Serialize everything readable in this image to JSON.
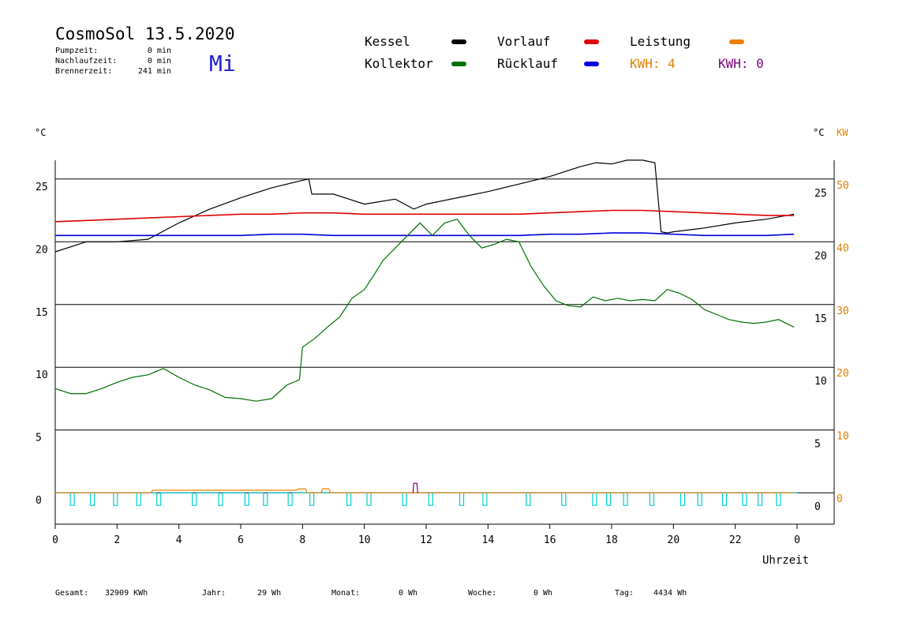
{
  "header": {
    "title": "CosmoSol 13.5.2020",
    "weekday": "Mi",
    "stats": [
      {
        "label": "Pumpzeit:",
        "value": "0 min"
      },
      {
        "label": "Nachlaufzeit:",
        "value": "0 min"
      },
      {
        "label": "Brennerzeit:",
        "value": "241 min"
      }
    ]
  },
  "legend": {
    "items": [
      {
        "label": "Kessel",
        "color": "#000000"
      },
      {
        "label": "Vorlauf",
        "color": "#e00000"
      },
      {
        "label": "Leistung",
        "color": "#f08000"
      },
      {
        "label": "Kollektor",
        "color": "#007000"
      },
      {
        "label": "Rücklauf",
        "color": "#0000e0"
      }
    ],
    "kwh_orange": {
      "text": "KWH: 4",
      "color": "#e08000"
    },
    "kwh_purple": {
      "text": "KWH: 0",
      "color": "#800080"
    }
  },
  "axes": {
    "left_unit": "°C",
    "right_unit_c": "°C",
    "right_unit_kw": "KW",
    "x_label": "Uhrzeit",
    "kw_color": "#e08000"
  },
  "footer": [
    {
      "label": "Gesamt:",
      "value": "32909 KWh"
    },
    {
      "label": "Jahr:",
      "value": "29 Wh"
    },
    {
      "label": "Monat:",
      "value": "0 Wh"
    },
    {
      "label": "Woche:",
      "value": "0 Wh"
    },
    {
      "label": "Tag:",
      "value": "4434 Wh"
    }
  ],
  "chart_data": {
    "type": "line",
    "xlabel": "Uhrzeit",
    "xlim": [
      0,
      24
    ],
    "x_ticks": [
      "0",
      "2",
      "4",
      "6",
      "8",
      "10",
      "12",
      "14",
      "16",
      "18",
      "20",
      "22",
      "0"
    ],
    "y_left": {
      "label": "°C",
      "ylim": [
        -2,
        27
      ],
      "ticks": [
        0,
        5,
        10,
        15,
        20,
        25
      ]
    },
    "y_right_c": {
      "label": "°C",
      "ticks": [
        0,
        5,
        10,
        15,
        20,
        25
      ]
    },
    "y_right_kw": {
      "label": "KW",
      "ylim": [
        -4,
        54
      ],
      "ticks": [
        0,
        10,
        20,
        30,
        40,
        50
      ]
    },
    "grid_y": [
      0,
      5,
      10,
      15,
      20,
      25
    ],
    "series": [
      {
        "name": "Kessel",
        "color": "#000000",
        "points": [
          [
            0,
            19.2
          ],
          [
            1,
            20
          ],
          [
            2,
            20
          ],
          [
            3,
            20.2
          ],
          [
            4,
            21.5
          ],
          [
            5,
            22.6
          ],
          [
            6,
            23.5
          ],
          [
            7,
            24.3
          ],
          [
            8,
            24.9
          ],
          [
            8.2,
            25
          ],
          [
            8.3,
            23.8
          ],
          [
            9,
            23.8
          ],
          [
            9.5,
            23.4
          ],
          [
            10,
            23
          ],
          [
            11,
            23.4
          ],
          [
            11.6,
            22.6
          ],
          [
            12,
            23
          ],
          [
            13,
            23.5
          ],
          [
            14,
            24
          ],
          [
            15,
            24.6
          ],
          [
            16,
            25.2
          ],
          [
            17,
            26
          ],
          [
            17.5,
            26.3
          ],
          [
            18,
            26.2
          ],
          [
            18.5,
            26.5
          ],
          [
            19,
            26.5
          ],
          [
            19.4,
            26.3
          ],
          [
            19.6,
            20.8
          ],
          [
            19.8,
            20.7
          ],
          [
            20,
            20.8
          ],
          [
            21,
            21.1
          ],
          [
            22,
            21.5
          ],
          [
            23,
            21.8
          ],
          [
            23.9,
            22.2
          ]
        ]
      },
      {
        "name": "Vorlauf",
        "color": "#e00000",
        "points": [
          [
            0,
            21.6
          ],
          [
            1,
            21.7
          ],
          [
            2,
            21.8
          ],
          [
            3,
            21.9
          ],
          [
            4,
            22
          ],
          [
            5,
            22.1
          ],
          [
            6,
            22.2
          ],
          [
            7,
            22.2
          ],
          [
            8,
            22.3
          ],
          [
            9,
            22.3
          ],
          [
            10,
            22.2
          ],
          [
            11,
            22.2
          ],
          [
            12,
            22.2
          ],
          [
            13,
            22.2
          ],
          [
            14,
            22.2
          ],
          [
            15,
            22.2
          ],
          [
            16,
            22.3
          ],
          [
            17,
            22.4
          ],
          [
            18,
            22.5
          ],
          [
            19,
            22.5
          ],
          [
            20,
            22.4
          ],
          [
            21,
            22.3
          ],
          [
            22,
            22.2
          ],
          [
            23,
            22.1
          ],
          [
            23.9,
            22.1
          ]
        ]
      },
      {
        "name": "Rücklauf",
        "color": "#0000e0",
        "points": [
          [
            0,
            20.5
          ],
          [
            1,
            20.5
          ],
          [
            2,
            20.5
          ],
          [
            3,
            20.5
          ],
          [
            4,
            20.5
          ],
          [
            5,
            20.5
          ],
          [
            6,
            20.5
          ],
          [
            7,
            20.6
          ],
          [
            8,
            20.6
          ],
          [
            9,
            20.5
          ],
          [
            10,
            20.5
          ],
          [
            11,
            20.5
          ],
          [
            12,
            20.5
          ],
          [
            13,
            20.5
          ],
          [
            14,
            20.5
          ],
          [
            15,
            20.5
          ],
          [
            16,
            20.6
          ],
          [
            17,
            20.6
          ],
          [
            18,
            20.7
          ],
          [
            19,
            20.7
          ],
          [
            20,
            20.6
          ],
          [
            21,
            20.5
          ],
          [
            22,
            20.5
          ],
          [
            23,
            20.5
          ],
          [
            23.9,
            20.6
          ]
        ]
      },
      {
        "name": "Kollektor",
        "color": "#007000",
        "points": [
          [
            0,
            8.3
          ],
          [
            0.5,
            7.9
          ],
          [
            1,
            7.9
          ],
          [
            1.5,
            8.3
          ],
          [
            2,
            8.8
          ],
          [
            2.5,
            9.2
          ],
          [
            3,
            9.4
          ],
          [
            3.5,
            9.9
          ],
          [
            4,
            9.2
          ],
          [
            4.5,
            8.6
          ],
          [
            5,
            8.2
          ],
          [
            5.5,
            7.6
          ],
          [
            6,
            7.5
          ],
          [
            6.5,
            7.3
          ],
          [
            7,
            7.5
          ],
          [
            7.5,
            8.6
          ],
          [
            7.9,
            9.0
          ],
          [
            8,
            11.6
          ],
          [
            8.4,
            12.3
          ],
          [
            8.8,
            13.2
          ],
          [
            9.2,
            14
          ],
          [
            9.6,
            15.5
          ],
          [
            10,
            16.2
          ],
          [
            10.3,
            17.3
          ],
          [
            10.6,
            18.5
          ],
          [
            11,
            19.5
          ],
          [
            11.4,
            20.5
          ],
          [
            11.8,
            21.5
          ],
          [
            12.2,
            20.5
          ],
          [
            12.6,
            21.5
          ],
          [
            13,
            21.8
          ],
          [
            13.4,
            20.5
          ],
          [
            13.8,
            19.5
          ],
          [
            14.2,
            19.8
          ],
          [
            14.6,
            20.2
          ],
          [
            15,
            20
          ],
          [
            15.4,
            18
          ],
          [
            15.8,
            16.5
          ],
          [
            16.2,
            15.3
          ],
          [
            16.6,
            14.9
          ],
          [
            17,
            14.8
          ],
          [
            17.4,
            15.6
          ],
          [
            17.8,
            15.3
          ],
          [
            18.2,
            15.5
          ],
          [
            18.6,
            15.3
          ],
          [
            19,
            15.4
          ],
          [
            19.4,
            15.3
          ],
          [
            19.8,
            16.2
          ],
          [
            20.2,
            15.9
          ],
          [
            20.6,
            15.4
          ],
          [
            21,
            14.6
          ],
          [
            21.4,
            14.2
          ],
          [
            21.8,
            13.8
          ],
          [
            22.2,
            13.6
          ],
          [
            22.6,
            13.5
          ],
          [
            23,
            13.6
          ],
          [
            23.4,
            13.8
          ],
          [
            23.9,
            13.2
          ]
        ]
      },
      {
        "name": "Leistung",
        "color": "#f08000",
        "axis": "right_kw",
        "points": [
          [
            0,
            0
          ],
          [
            3.1,
            0
          ],
          [
            3.15,
            0.4
          ],
          [
            4,
            0.4
          ],
          [
            5,
            0.4
          ],
          [
            6,
            0.4
          ],
          [
            7,
            0.4
          ],
          [
            7.8,
            0.4
          ],
          [
            7.85,
            0.6
          ],
          [
            8.1,
            0.6
          ],
          [
            8.15,
            0
          ],
          [
            8.6,
            0
          ],
          [
            8.65,
            0.6
          ],
          [
            8.85,
            0.6
          ],
          [
            8.9,
            0
          ],
          [
            23.9,
            0
          ]
        ]
      },
      {
        "name": "Pumpe",
        "color": "#00d0d0",
        "points": [
          [
            0,
            0
          ],
          [
            23.9,
            0
          ]
        ]
      }
    ],
    "pump_dips": [
      0.55,
      1.2,
      1.95,
      2.7,
      3.35,
      4.5,
      5.35,
      6.2,
      6.8,
      7.6,
      8.3,
      9.5,
      10.15,
      11.3,
      12.15,
      13.15,
      13.9,
      15.3,
      16.45,
      17.45,
      17.9,
      18.45,
      19.3,
      20.3,
      20.85,
      21.65,
      22.3,
      22.8,
      23.4
    ],
    "purple_blip": [
      11.65,
      0.9
    ]
  }
}
